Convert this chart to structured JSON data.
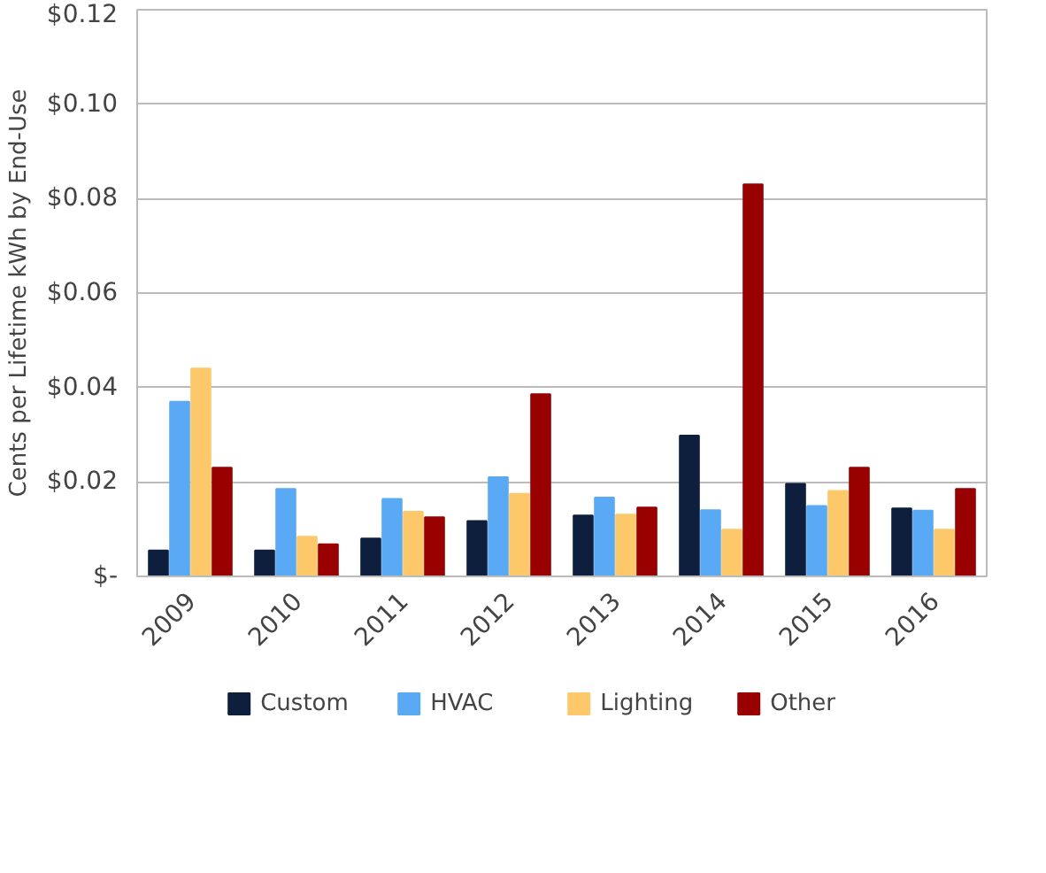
{
  "chart_data": {
    "type": "bar",
    "ylabel": "Cents per Lifetime kWh by End-Use",
    "categories": [
      "2009",
      "2010",
      "2011",
      "2012",
      "2013",
      "2014",
      "2015",
      "2016"
    ],
    "series": [
      {
        "name": "Custom",
        "color": "#0d1f3c",
        "values": [
          0.0055,
          0.0055,
          0.008,
          0.0117,
          0.0129,
          0.0298,
          0.0196,
          0.0144
        ]
      },
      {
        "name": "HVAC",
        "color": "#5aa9f5",
        "values": [
          0.037,
          0.0185,
          0.0164,
          0.021,
          0.0167,
          0.014,
          0.0149,
          0.0139
        ]
      },
      {
        "name": "Lighting",
        "color": "#fdc86a",
        "values": [
          0.044,
          0.0084,
          0.0137,
          0.0175,
          0.0131,
          0.0099,
          0.0181,
          0.0099
        ]
      },
      {
        "name": "Other",
        "color": "#990000",
        "values": [
          0.023,
          0.0068,
          0.0125,
          0.0386,
          0.0146,
          0.083,
          0.023,
          0.0185
        ]
      }
    ],
    "ylim": [
      0,
      0.12
    ],
    "yticks": [
      {
        "value": 0,
        "label": "$-"
      },
      {
        "value": 0.02,
        "label": "$0.02"
      },
      {
        "value": 0.04,
        "label": "$0.04"
      },
      {
        "value": 0.06,
        "label": "$0.06"
      },
      {
        "value": 0.08,
        "label": "$0.08"
      },
      {
        "value": 0.1,
        "label": "$0.10"
      },
      {
        "value": 0.12,
        "label": "$0.12"
      }
    ],
    "grid": "y",
    "legend": "bottom"
  }
}
